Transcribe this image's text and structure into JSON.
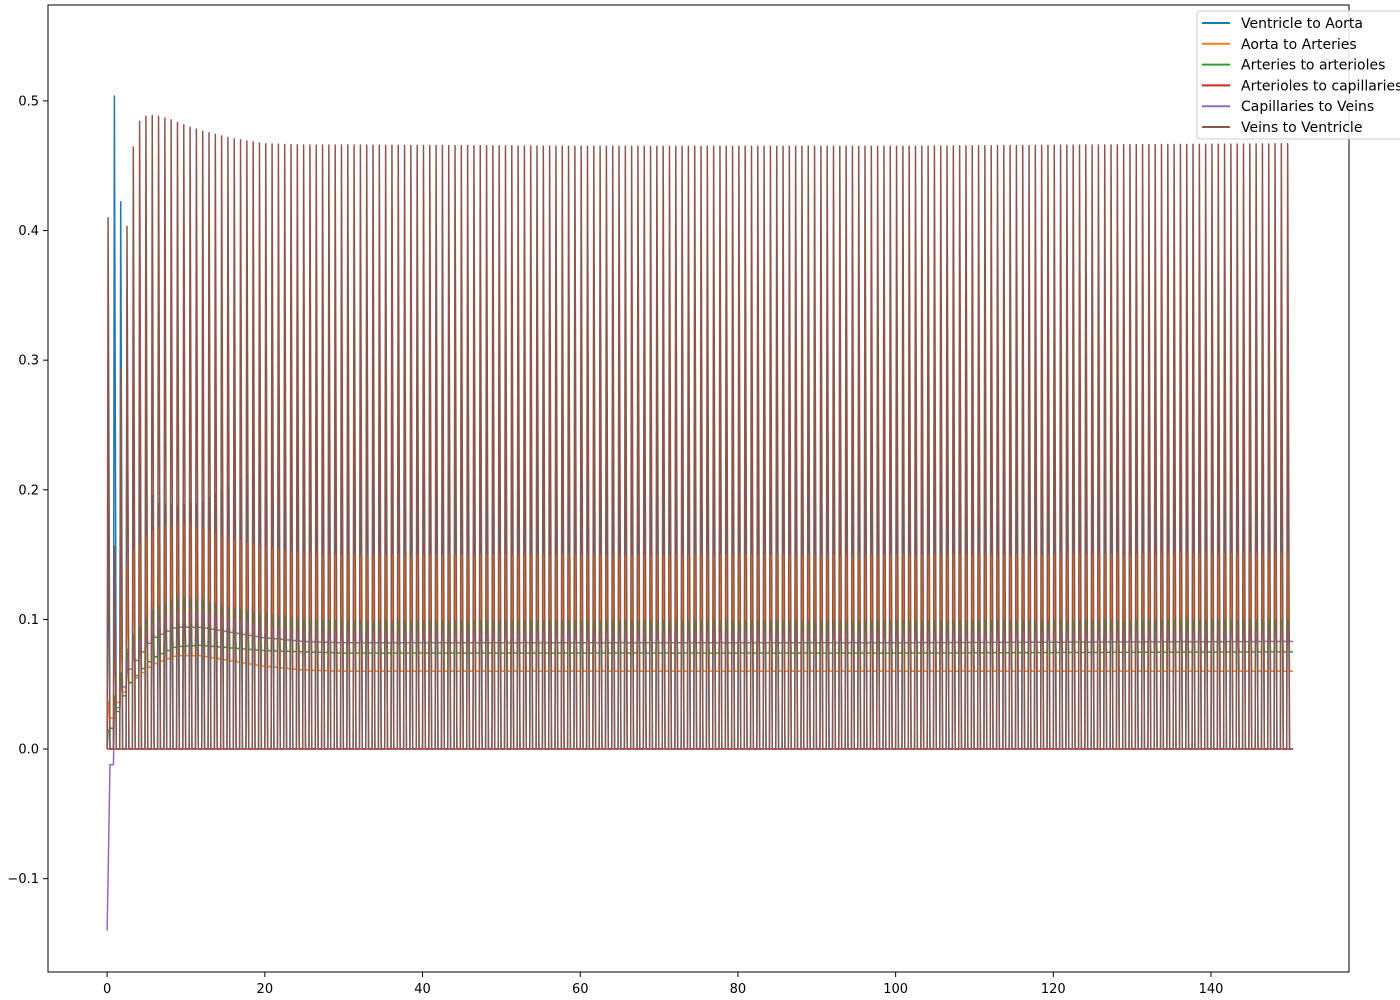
{
  "chart_data": {
    "type": "line",
    "title": "",
    "xlabel": "",
    "ylabel": "",
    "xlim": [
      -7.5,
      157.5
    ],
    "ylim": [
      -0.172,
      0.574
    ],
    "x_ticks": [
      0,
      20,
      40,
      60,
      80,
      100,
      120,
      140
    ],
    "x_tick_labels": [
      "0",
      "20",
      "40",
      "60",
      "80",
      "100",
      "120",
      "140"
    ],
    "y_ticks": [
      -0.1,
      0.0,
      0.1,
      0.2,
      0.3,
      0.4,
      0.5
    ],
    "y_tick_labels": [
      "−0.1",
      "0.0",
      "0.1",
      "0.2",
      "0.3",
      "0.4",
      "0.5"
    ],
    "grid": false,
    "legend_position": "top-right",
    "x_range": [
      0,
      150
    ],
    "cycle_period": 0.8,
    "series": [
      {
        "name": "Ventricle to Aorta",
        "color": "#1f77b4",
        "envelope": {
          "t": [
            0,
            0.7,
            1.5,
            2.5,
            4,
            6,
            9,
            12,
            16,
            20,
            25,
            30,
            60,
            100,
            150
          ],
          "peak": [
            0.02,
            0.542,
            0.452,
            0.364,
            0.264,
            0.19,
            0.188,
            0.19,
            0.205,
            0.218,
            0.224,
            0.226,
            0.226,
            0.232,
            0.239
          ],
          "trough": [
            0.0,
            0.0,
            0.0,
            0.0,
            0.0,
            0.0,
            0.0,
            0.0,
            0.0,
            0.0,
            0.0,
            0.0,
            0.0,
            0.0,
            0.0
          ]
        }
      },
      {
        "name": "Aorta to Arteries",
        "color": "#ff7f0e",
        "envelope": {
          "t": [
            0,
            1,
            3,
            6,
            9,
            12,
            16,
            20,
            25,
            30,
            60,
            100,
            150
          ],
          "peak": [
            0.02,
            0.09,
            0.15,
            0.17,
            0.174,
            0.17,
            0.162,
            0.156,
            0.151,
            0.15,
            0.15,
            0.15,
            0.151
          ],
          "trough": [
            0.0,
            0.03,
            0.05,
            0.065,
            0.072,
            0.072,
            0.068,
            0.064,
            0.061,
            0.06,
            0.06,
            0.06,
            0.06
          ]
        }
      },
      {
        "name": "Arteries to arterioles",
        "color": "#2ca02c",
        "envelope": {
          "t": [
            0,
            1,
            3,
            6,
            9,
            12,
            16,
            20,
            25,
            30,
            60,
            100,
            150
          ],
          "peak": [
            0.005,
            0.04,
            0.085,
            0.108,
            0.117,
            0.115,
            0.109,
            0.104,
            0.1,
            0.099,
            0.099,
            0.099,
            0.1
          ],
          "trough": [
            0.0,
            0.02,
            0.05,
            0.07,
            0.079,
            0.08,
            0.078,
            0.076,
            0.075,
            0.074,
            0.074,
            0.074,
            0.075
          ]
        }
      },
      {
        "name": "Arterioles to capillaries",
        "color": "#d62728",
        "envelope": {
          "t": [
            0,
            150
          ],
          "peak": [
            0.0,
            0.0
          ],
          "trough": [
            0.0,
            0.0
          ]
        }
      },
      {
        "name": "Capillaries to Veins",
        "color": "#9467bd",
        "envelope": {
          "t": [
            0,
            1,
            3,
            6,
            9,
            12,
            16,
            20,
            25,
            30,
            60,
            100,
            150
          ],
          "peak": [
            -0.14,
            0.03,
            0.075,
            0.097,
            0.106,
            0.105,
            0.1,
            0.094,
            0.09,
            0.089,
            0.089,
            0.089,
            0.09
          ],
          "trough": [
            -0.14,
            0.02,
            0.06,
            0.085,
            0.094,
            0.094,
            0.09,
            0.086,
            0.083,
            0.082,
            0.082,
            0.082,
            0.083
          ]
        }
      },
      {
        "name": "Veins to Ventricle",
        "color": "#8c564b",
        "envelope": {
          "t": [
            0,
            1,
            2,
            3,
            4,
            5,
            6,
            8,
            10,
            12,
            16,
            20,
            25,
            30,
            60,
            100,
            150
          ],
          "peak": [
            0.492,
            0.15,
            0.32,
            0.45,
            0.483,
            0.488,
            0.489,
            0.486,
            0.481,
            0.477,
            0.471,
            0.467,
            0.466,
            0.466,
            0.465,
            0.465,
            0.467
          ],
          "trough": [
            0.0,
            0.0,
            0.0,
            0.0,
            0.0,
            0.0,
            0.0,
            0.0,
            0.0,
            0.0,
            0.0,
            0.0,
            0.0,
            0.0,
            0.0,
            0.0,
            0.0
          ]
        }
      }
    ]
  }
}
